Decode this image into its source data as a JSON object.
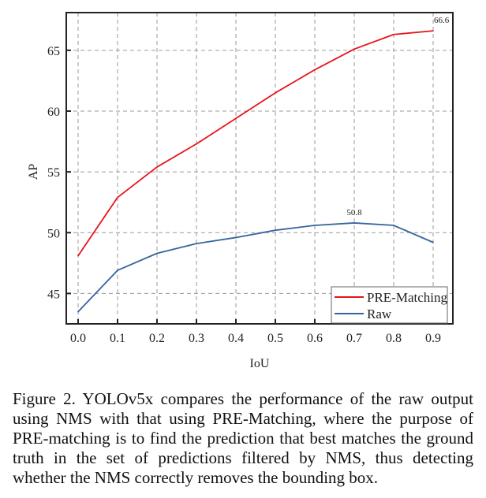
{
  "chart_data": {
    "type": "line",
    "title": "",
    "xlabel": "IoU",
    "ylabel": "AP",
    "x": [
      0.0,
      0.1,
      0.2,
      0.3,
      0.4,
      0.5,
      0.6,
      0.7,
      0.8,
      0.9
    ],
    "x_tick_labels": [
      "0.0",
      "0.1",
      "0.2",
      "0.3",
      "0.4",
      "0.5",
      "0.6",
      "0.7",
      "0.8",
      "0.9"
    ],
    "y_ticks": [
      45,
      50,
      55,
      60,
      65
    ],
    "y_tick_labels": [
      "45",
      "50",
      "55",
      "60",
      "65"
    ],
    "xlim": [
      -0.03,
      0.95
    ],
    "ylim": [
      42.5,
      68.1
    ],
    "grid": true,
    "legend_position": "bottom-right",
    "series": [
      {
        "name": "PRE-Matching",
        "color": "#e8141c",
        "values": [
          48.1,
          52.9,
          55.4,
          57.3,
          59.4,
          61.5,
          63.4,
          65.1,
          66.3,
          66.6
        ]
      },
      {
        "name": "Raw",
        "color": "#3464a0",
        "values": [
          43.5,
          46.9,
          48.3,
          49.1,
          49.6,
          50.2,
          50.6,
          50.8,
          50.6,
          49.2
        ]
      }
    ],
    "annotations": [
      {
        "series": "PRE-Matching",
        "x": 0.9,
        "y": 66.6,
        "text": "66.6"
      },
      {
        "series": "Raw",
        "x": 0.7,
        "y": 50.8,
        "text": "50.8"
      }
    ]
  },
  "caption": "Figure 2.  YOLOv5x compares the performance of the raw output using NMS with that using PRE-Matching, where the purpose of PRE-matching is to find the prediction that best matches the ground truth in the set of predictions filtered by NMS, thus detecting whether the NMS correctly removes the bounding box."
}
